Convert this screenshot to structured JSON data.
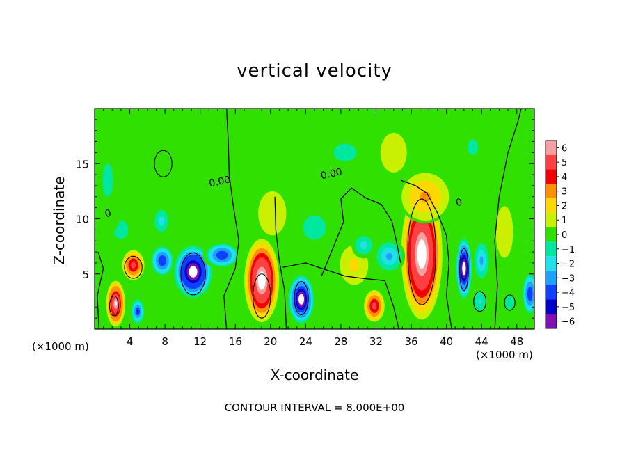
{
  "chart_data": {
    "type": "heatmap",
    "title": "vertical velocity",
    "xlabel": "X-coordinate",
    "ylabel": "Z-coordinate",
    "x_unit_left": "(×1000 m)",
    "x_unit_right": "(×1000 m)",
    "xlim": [
      0,
      50
    ],
    "ylim": [
      0,
      20
    ],
    "xticks": [
      4,
      8,
      12,
      16,
      20,
      24,
      28,
      32,
      36,
      40,
      44,
      48
    ],
    "yticks": [
      5,
      10,
      15
    ],
    "colorbar": {
      "levels": [
        6,
        5,
        4,
        3,
        2,
        1,
        0,
        -1,
        -2,
        -3,
        -4,
        -5,
        -6
      ],
      "colors": [
        "#f4a0a0",
        "#ff4040",
        "#f00000",
        "#ff9000",
        "#ffd800",
        "#c8f000",
        "#30e000",
        "#00e8a0",
        "#20e0e8",
        "#20a0ff",
        "#1040ff",
        "#0000c8",
        "#8010b0"
      ]
    },
    "background_value": 0.3,
    "contour_interval_text": "CONTOUR INTERVAL = 8.000E+00",
    "contour_labels": [
      {
        "text": "0.00",
        "x": 14.3,
        "z": 13.1
      },
      {
        "text": "0.00",
        "x": 27.0,
        "z": 13.8
      },
      {
        "text": "0",
        "x": 1.6,
        "z": 10.2
      },
      {
        "text": "0",
        "x": 41.5,
        "z": 11.2
      }
    ],
    "features": [
      {
        "x": 37.2,
        "z": 6.8,
        "rx": 2.6,
        "rz": 6.6,
        "value": 7.5
      },
      {
        "x": 37.6,
        "z": 12.0,
        "rx": 3.0,
        "rz": 2.4,
        "value": 3.0
      },
      {
        "x": 19.0,
        "z": 4.4,
        "rx": 2.2,
        "rz": 4.2,
        "value": 7.5
      },
      {
        "x": 2.4,
        "z": 2.3,
        "rx": 1.2,
        "rz": 2.3,
        "value": 6.5
      },
      {
        "x": 4.4,
        "z": 5.8,
        "rx": 1.4,
        "rz": 1.5,
        "value": 5.0
      },
      {
        "x": 31.8,
        "z": 2.1,
        "rx": 1.3,
        "rz": 1.6,
        "value": 5.0
      },
      {
        "x": 29.5,
        "z": 5.8,
        "rx": 1.8,
        "rz": 2.0,
        "value": 1.8
      },
      {
        "x": 46.6,
        "z": 8.8,
        "rx": 1.1,
        "rz": 2.6,
        "value": 1.6
      },
      {
        "x": 20.2,
        "z": 10.5,
        "rx": 2.0,
        "rz": 2.5,
        "value": 1.4
      },
      {
        "x": 11.2,
        "z": 5.2,
        "rx": 2.4,
        "rz": 2.6,
        "value": -7.5
      },
      {
        "x": 14.5,
        "z": 6.7,
        "rx": 2.2,
        "rz": 1.3,
        "value": -4.5
      },
      {
        "x": 7.7,
        "z": 6.2,
        "rx": 1.5,
        "rz": 1.6,
        "value": -4.5
      },
      {
        "x": 23.5,
        "z": 2.7,
        "rx": 1.6,
        "rz": 2.4,
        "value": -7.0
      },
      {
        "x": 42.0,
        "z": 5.5,
        "rx": 1.0,
        "rz": 3.0,
        "value": -7.0
      },
      {
        "x": 44.0,
        "z": 6.2,
        "rx": 1.0,
        "rz": 2.0,
        "value": -2.8
      },
      {
        "x": 4.9,
        "z": 1.6,
        "rx": 0.8,
        "rz": 1.2,
        "value": -5.0
      },
      {
        "x": 49.5,
        "z": 3.2,
        "rx": 1.0,
        "rz": 2.2,
        "value": -4.5
      },
      {
        "x": 33.5,
        "z": 6.6,
        "rx": 1.8,
        "rz": 1.6,
        "value": -2.8
      },
      {
        "x": 30.6,
        "z": 7.6,
        "rx": 1.4,
        "rz": 1.2,
        "value": -2.2
      },
      {
        "x": 25.0,
        "z": 9.2,
        "rx": 2.6,
        "rz": 2.2,
        "value": -1.2
      },
      {
        "x": 43.8,
        "z": 2.5,
        "rx": 1.0,
        "rz": 1.2,
        "value": -1.8
      },
      {
        "x": 47.2,
        "z": 2.4,
        "rx": 1.0,
        "rz": 1.2,
        "value": -1.2
      },
      {
        "x": 7.6,
        "z": 9.8,
        "rx": 1.1,
        "rz": 1.4,
        "value": -2.2
      },
      {
        "x": 3.0,
        "z": 9.0,
        "rx": 1.4,
        "rz": 1.4,
        "value": -1.5
      },
      {
        "x": 28.5,
        "z": 16.0,
        "rx": 6.5,
        "rz": 4.0,
        "value": -0.6
      },
      {
        "x": 1.5,
        "z": 13.5,
        "rx": 2.0,
        "rz": 5.0,
        "value": -0.8
      },
      {
        "x": 43.0,
        "z": 16.5,
        "rx": 3.0,
        "rz": 3.5,
        "value": -0.6
      },
      {
        "x": 34.0,
        "z": 16.0,
        "rx": 2.5,
        "rz": 3.0,
        "value": 0.8
      }
    ],
    "zero_contours": [
      [
        [
          15.0,
          0
        ],
        [
          14.7,
          3.0
        ],
        [
          16.0,
          5.5
        ],
        [
          16.4,
          8.0
        ],
        [
          15.8,
          11.0
        ],
        [
          15.3,
          14.0
        ],
        [
          15.2,
          17.0
        ],
        [
          15.0,
          20
        ]
      ],
      [
        [
          21.8,
          0
        ],
        [
          21.6,
          3.5
        ],
        [
          21.0,
          6.2
        ],
        [
          20.6,
          9.0
        ],
        [
          20.5,
          12.0
        ]
      ],
      [
        [
          21.4,
          5.6
        ],
        [
          24.0,
          6.0
        ],
        [
          26.2,
          5.4
        ],
        [
          28.5,
          4.8
        ],
        [
          30.5,
          4.6
        ],
        [
          33.0,
          4.4
        ],
        [
          34.0,
          2.0
        ],
        [
          34.6,
          0
        ]
      ],
      [
        [
          25.8,
          4.8
        ],
        [
          28.3,
          9.7
        ],
        [
          28.0,
          11.8
        ],
        [
          29.2,
          12.8
        ],
        [
          30.8,
          11.9
        ],
        [
          32.6,
          11.3
        ],
        [
          33.8,
          9.8
        ],
        [
          34.3,
          8.0
        ],
        [
          34.8,
          6.0
        ]
      ],
      [
        [
          40.6,
          0
        ],
        [
          40.0,
          3.0
        ],
        [
          40.3,
          6.0
        ],
        [
          40.0,
          8.5
        ],
        [
          39.0,
          10.5
        ],
        [
          37.8,
          12.3
        ],
        [
          36.5,
          13.0
        ],
        [
          34.8,
          13.5
        ]
      ],
      [
        [
          0.5,
          0
        ],
        [
          0.3,
          3.0
        ],
        [
          1.0,
          5.5
        ],
        [
          0.4,
          7.0
        ]
      ],
      [
        [
          45.5,
          0
        ],
        [
          45.8,
          4.0
        ],
        [
          45.5,
          8.0
        ],
        [
          46.0,
          12.0
        ],
        [
          47.0,
          16.0
        ],
        [
          48.2,
          19.0
        ],
        [
          48.5,
          20
        ]
      ]
    ],
    "closed_contours": [
      {
        "x": 37.2,
        "z": 7.0,
        "rx": 1.6,
        "rz": 4.8
      },
      {
        "x": 19.0,
        "z": 3.0,
        "rx": 1.0,
        "rz": 2.0
      },
      {
        "x": 2.2,
        "z": 2.1,
        "rx": 0.5,
        "rz": 0.9
      },
      {
        "x": 42.0,
        "z": 5.4,
        "rx": 0.5,
        "rz": 1.9
      },
      {
        "x": 23.5,
        "z": 2.8,
        "rx": 0.8,
        "rz": 1.5
      },
      {
        "x": 11.2,
        "z": 5.0,
        "rx": 1.4,
        "rz": 1.9
      },
      {
        "x": 7.8,
        "z": 15.0,
        "rx": 1.0,
        "rz": 1.2
      },
      {
        "x": 4.4,
        "z": 5.6,
        "rx": 1.0,
        "rz": 1.0
      },
      {
        "x": 43.8,
        "z": 2.5,
        "rx": 0.7,
        "rz": 0.9
      },
      {
        "x": 47.2,
        "z": 2.4,
        "rx": 0.6,
        "rz": 0.7
      }
    ]
  }
}
